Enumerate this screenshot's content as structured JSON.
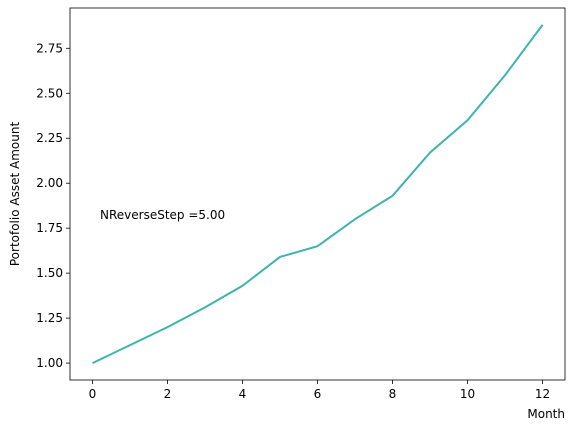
{
  "chart_data": {
    "type": "line",
    "x_label": "Month",
    "y_label": "Portofolio Asset Amount",
    "annotation": "NReverseStep =5.00",
    "x": [
      0,
      1,
      2,
      3,
      4,
      5,
      6,
      7,
      8,
      9,
      10,
      11,
      12
    ],
    "series": [
      {
        "color": "#3fb3ad",
        "values": [
          1.0,
          1.1,
          1.2,
          1.31,
          1.43,
          1.59,
          1.65,
          1.8,
          1.93,
          2.17,
          2.35,
          2.6,
          2.88
        ]
      }
    ],
    "xlim": [
      -0.6,
      12.6
    ],
    "ylim": [
      0.906,
      2.974
    ],
    "xticks": [
      0,
      2,
      4,
      6,
      8,
      10,
      12
    ],
    "yticks": [
      {
        "value": 1,
        "label": "1.00"
      },
      {
        "value": 1.25,
        "label": "1.25"
      },
      {
        "value": 1.5,
        "label": "1.50"
      },
      {
        "value": 1.75,
        "label": "1.75"
      },
      {
        "value": 2,
        "label": "2.00"
      },
      {
        "value": 2.25,
        "label": "2.25"
      },
      {
        "value": 2.5,
        "label": "2.50"
      },
      {
        "value": 2.75,
        "label": "2.75"
      }
    ],
    "grid": false
  }
}
